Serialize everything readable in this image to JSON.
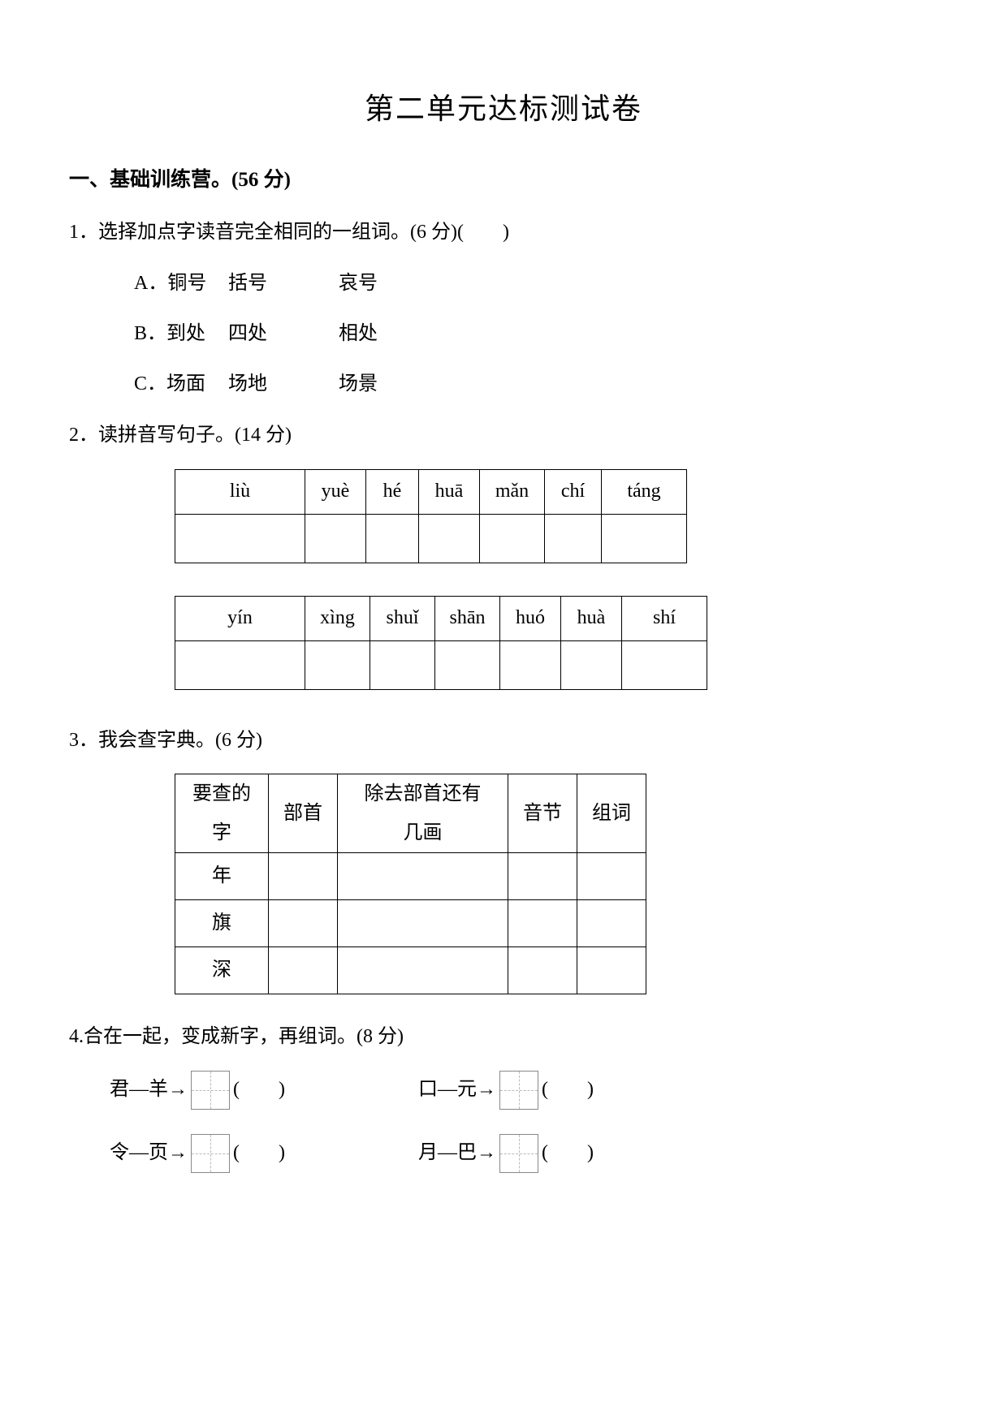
{
  "title": "第二单元达标测试卷",
  "section1": {
    "heading": "一、基础训练营。(56 分)"
  },
  "q1": {
    "text": "1．选择加点字读音完全相同的一组词。(6 分)(　　)",
    "options": {
      "a": {
        "label": "A．铜号",
        "w1": "括号",
        "w2": "哀号"
      },
      "b": {
        "label": "B．到处",
        "w1": "四处",
        "w2": "相处"
      },
      "c": {
        "label": "C．场面",
        "w1": "场地",
        "w2": "场景"
      }
    }
  },
  "q2": {
    "text": "2．读拼音写句子。(14 分)",
    "table1": [
      "liù",
      "yuè",
      "hé",
      "huā",
      "mǎn",
      "chí",
      "táng"
    ],
    "table2": [
      "yín",
      "xìng",
      "shuǐ",
      "shān",
      "huó",
      "huà",
      "shí"
    ]
  },
  "q3": {
    "text": "3．我会查字典。(6 分)",
    "headers": {
      "c0": "要查的\n字",
      "c1": "部首",
      "c2": "除去部首还有\n几画",
      "c3": "音节",
      "c4": "组词"
    },
    "rows": [
      "年",
      "旗",
      "深"
    ]
  },
  "q4": {
    "text": "4.合在一起，变成新字，再组词。(8 分)",
    "pairs": [
      {
        "left": "君—羊→",
        "paren": "(　　)"
      },
      {
        "left": "口—元→",
        "paren": "(　　)"
      },
      {
        "left": "令—页→",
        "paren": "(　　)"
      },
      {
        "left": "月—巴→",
        "paren": "(　　)"
      }
    ]
  }
}
